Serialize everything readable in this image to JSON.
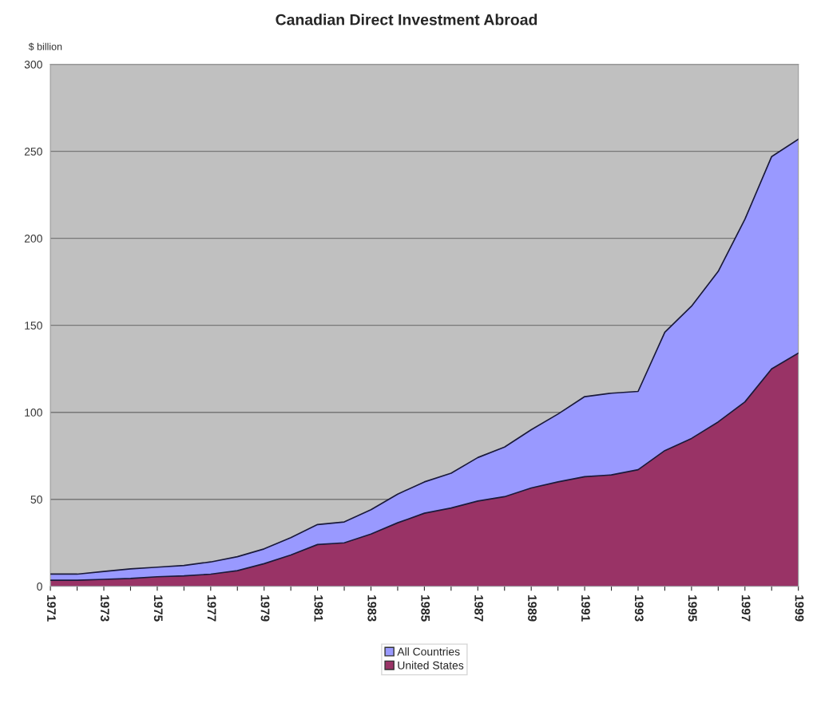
{
  "chart_data": {
    "type": "area",
    "title": "Canadian Direct Investment Abroad",
    "ylabel": "$ billion",
    "x": [
      1971,
      1972,
      1973,
      1974,
      1975,
      1976,
      1977,
      1978,
      1979,
      1980,
      1981,
      1982,
      1983,
      1984,
      1985,
      1986,
      1987,
      1988,
      1989,
      1990,
      1991,
      1992,
      1993,
      1994,
      1995,
      1996,
      1997,
      1998,
      1999
    ],
    "series": [
      {
        "name": "All Countries",
        "color": "#9999ff",
        "values": [
          7,
          7,
          8.5,
          10,
          11,
          12,
          14,
          17,
          21.5,
          28,
          35.5,
          37,
          44,
          53,
          60,
          65,
          74,
          80,
          90,
          99,
          109,
          111,
          112,
          146,
          161,
          181,
          211,
          247,
          257
        ]
      },
      {
        "name": "United States",
        "color": "#993366",
        "values": [
          3.5,
          3.5,
          4,
          4.5,
          5.5,
          6,
          7,
          9,
          13,
          18,
          24,
          25,
          30,
          36.5,
          42,
          45,
          49,
          51.5,
          56.5,
          60,
          63,
          64,
          67,
          78,
          85,
          94.5,
          106,
          125,
          134
        ]
      }
    ],
    "xlim": [
      1971,
      1999
    ],
    "xticks": [
      1971,
      {
        "value": 1972,
        "label": null
      },
      1973,
      {
        "value": 1974,
        "label": null
      },
      1975,
      {
        "value": 1976,
        "label": null
      },
      1977,
      {
        "value": 1978,
        "label": null
      },
      1979,
      {
        "value": 1980,
        "label": null
      },
      1981,
      {
        "value": 1982,
        "label": null
      },
      1983,
      {
        "value": 1984,
        "label": null
      },
      1985,
      {
        "value": 1986,
        "label": null
      },
      1987,
      {
        "value": 1988,
        "label": null
      },
      1989,
      {
        "value": 1990,
        "label": null
      },
      1991,
      {
        "value": 1992,
        "label": null
      },
      1993,
      {
        "value": 1994,
        "label": null
      },
      1995,
      {
        "value": 1996,
        "label": null
      },
      1997,
      {
        "value": 1998,
        "label": null
      },
      1999
    ],
    "ylim": [
      0,
      300
    ],
    "yticks": [
      0,
      50,
      100,
      150,
      200,
      250,
      300
    ],
    "grid": "y",
    "legend": "bottom"
  }
}
